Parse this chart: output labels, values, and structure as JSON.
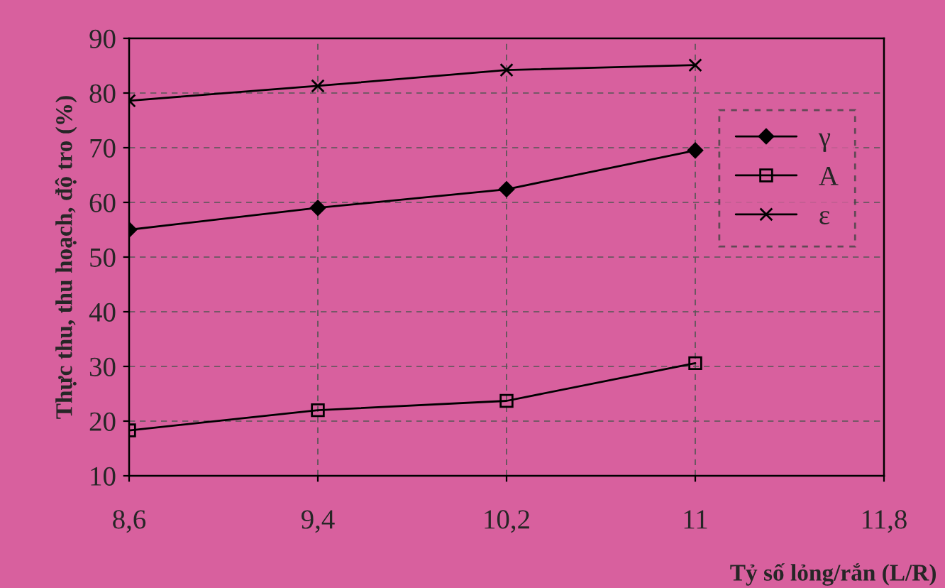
{
  "chart_data": {
    "type": "line",
    "xlabel": "Tỷ số lỏng/rắn (L/R)",
    "ylabel": "Thực thu, thu hoạch, độ tro (%)",
    "x": [
      8.6,
      9.4,
      10.2,
      11
    ],
    "series": [
      {
        "name": "γ",
        "color": "#000000",
        "marker": "diamond",
        "values": [
          55,
          59,
          62.4,
          69.5
        ]
      },
      {
        "name": "A",
        "color": "#000000",
        "marker": "square",
        "values": [
          18.3,
          22,
          23.7,
          30.6
        ]
      },
      {
        "name": "ε",
        "color": "#000000",
        "marker": "cross",
        "values": [
          78.6,
          81.3,
          84.2,
          85.1
        ]
      }
    ],
    "xlim": [
      8.6,
      11.8
    ],
    "xticks": [
      {
        "value": 8.6,
        "label": "8,6"
      },
      {
        "value": 9.4,
        "label": "9,4"
      },
      {
        "value": 10.2,
        "label": "10,2"
      },
      {
        "value": 11,
        "label": "11"
      },
      {
        "value": 11.8,
        "label": "11,8"
      }
    ],
    "ylim": [
      10,
      90
    ],
    "yticks": [
      10,
      20,
      30,
      40,
      50,
      60,
      70,
      80,
      90
    ],
    "grid": true,
    "legend": "right",
    "line_style": "solid"
  }
}
